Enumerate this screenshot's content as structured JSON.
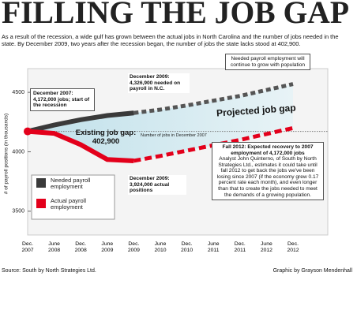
{
  "title": "FILLING THE JOB GAP",
  "intro": "As a result of the recession, a wide gulf has grown between the actual jobs in North Carolina and the number of jobs needed in the state. By December 2009, two years after the recession began, the number of jobs the state lacks stood at 402,900.",
  "chart_data": {
    "type": "line",
    "y_label": "# of payroll positions (in thousands)",
    "categories": [
      "Dec. 2007",
      "June 2008",
      "Dec. 2008",
      "June 2009",
      "Dec. 2009",
      "June 2010",
      "Dec. 2010",
      "June 2011",
      "Dec. 2011",
      "June 2012",
      "Dec. 2012"
    ],
    "series": [
      {
        "name": "Needed payroll employment",
        "color": "#3a3a3a",
        "values": [
          4172,
          4225,
          4270,
          4305,
          4327,
          null,
          null,
          null,
          null,
          null,
          null
        ]
      },
      {
        "color": "#555555",
        "dashed": true,
        "values": [
          null,
          null,
          null,
          null,
          4327,
          4355,
          4390,
          4430,
          4470,
          4520,
          4570
        ]
      },
      {
        "name": "Actual payroll employment",
        "color": "#e3001b",
        "values": [
          4172,
          4155,
          4060,
          3935,
          3924,
          null,
          null,
          null,
          null,
          null,
          null
        ]
      },
      {
        "color": "#e3001b",
        "dashed": true,
        "values": [
          null,
          null,
          null,
          null,
          3924,
          3965,
          4010,
          4055,
          4100,
          4150,
          4200
        ]
      }
    ],
    "reference_line": {
      "label": "Number of jobs in December 2007",
      "value": 4172
    },
    "ylim": [
      3300,
      4700
    ],
    "yticks": [
      3500,
      4000,
      4500
    ],
    "annotations": [
      "December 2007: 4,172,000 jobs; start of the recession",
      "December 2009: 4,326,900 needed on payroll in N.C.",
      "Needed payroll employment will continue to grow with population",
      "Projected job gap",
      "Existing job gap: 402,900",
      "December 2009: 3,924,000 actual positions",
      "Fall 2012: Expected recovery to 2007 employment of 4,172,000 jobs",
      "Analyst John Quinterno, of South by North Strategies Ltd., estimates it could take until fall 2012 to get back the jobs we've been losing since 2007 (if the economy grew 0.17 percent rate each month), and even longer than that to create the jobs needed to meet the demands of a growing population."
    ]
  },
  "source": "Source: South by North Strategies Ltd.",
  "credit": "Graphic by Grayson Mendenhall"
}
